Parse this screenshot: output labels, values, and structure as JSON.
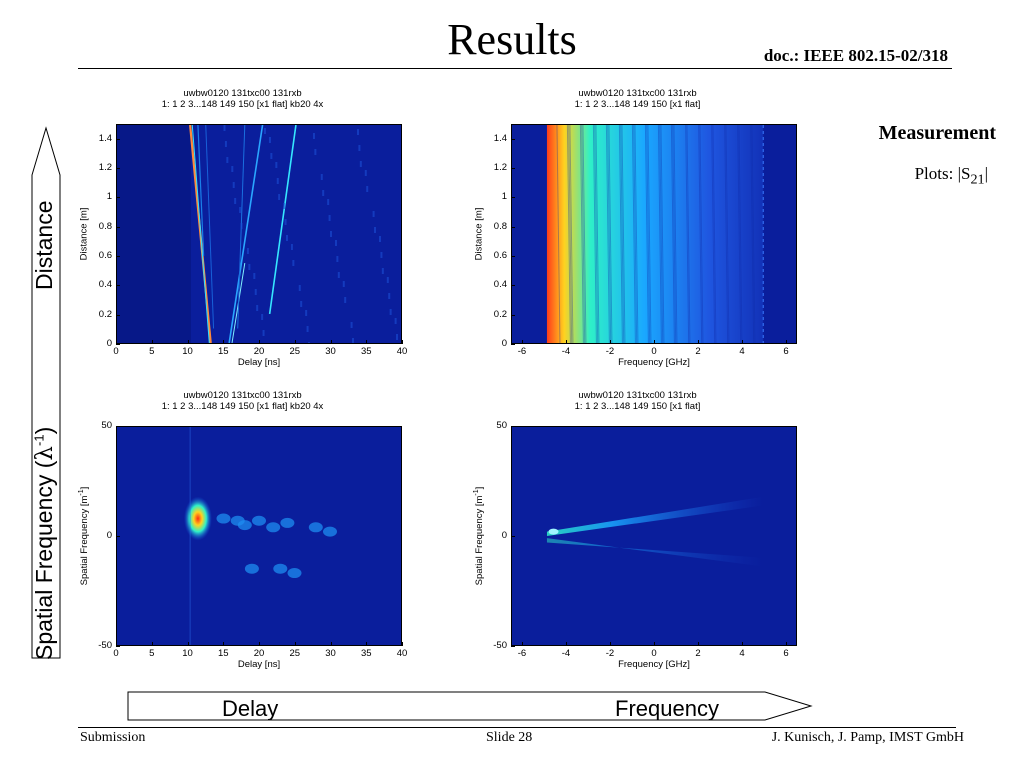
{
  "slide": {
    "title": "Results",
    "doc_ref": "doc.: IEEE 802.15-02/318"
  },
  "sidebar": {
    "heading": "Measurement",
    "plots_prefix": "Plots: |S",
    "plots_subscript": "21",
    "plots_suffix": "|"
  },
  "axes_annotations": {
    "distance": "Distance",
    "spatial_frequency_prefix": "Spatial Frequency  (",
    "spatial_frequency_lambda": "λ",
    "spatial_frequency_exp": "-1",
    "spatial_frequency_suffix": ")",
    "delay": "Delay",
    "frequency": "Frequency"
  },
  "footer": {
    "left": "Submission",
    "center": "Slide 28",
    "right": "J. Kunisch, J. Pamp, IMST GmbH"
  },
  "chart_data": [
    {
      "type": "heatmap",
      "title": "uwbw0120 131txc00 131rxb",
      "subtitle": "1: 1 2 3...148 149 150 [x1 flat] kb20 4x",
      "xlabel": "Delay [ns]",
      "ylabel": "Distance [m]",
      "xlim": [
        0,
        40
      ],
      "ylim": [
        0,
        1.5
      ],
      "xticks": [
        "0",
        "5",
        "10",
        "15",
        "20",
        "25",
        "30",
        "35",
        "40"
      ],
      "yticks": [
        "0",
        "0.2",
        "0.4",
        "0.6",
        "0.8",
        "1",
        "1.2",
        "1.4"
      ]
    },
    {
      "type": "heatmap",
      "title": "uwbw0120 131txc00 131rxb",
      "subtitle": "1: 1 2 3...148 149 150 [x1 flat]",
      "xlabel": "Frequency [GHz]",
      "ylabel": "Distance [m]",
      "xlim": [
        -6.5,
        6.5
      ],
      "ylim": [
        0,
        1.5
      ],
      "xticks": [
        "-6",
        "-4",
        "-2",
        "0",
        "2",
        "4",
        "6"
      ],
      "yticks": [
        "0",
        "0.2",
        "0.4",
        "0.6",
        "0.8",
        "1",
        "1.2",
        "1.4"
      ]
    },
    {
      "type": "heatmap",
      "title": "uwbw0120 131txc00 131rxb",
      "subtitle": "1: 1 2 3...148 149 150 [x1 flat] kb20 4x",
      "xlabel": "Delay [ns]",
      "ylabel": "Spatial Frequency [m",
      "ylabel_exp": "-1",
      "ylabel_end": "]",
      "xlim": [
        0,
        40
      ],
      "ylim": [
        -50,
        50
      ],
      "xticks": [
        "0",
        "5",
        "10",
        "15",
        "20",
        "25",
        "30",
        "35",
        "40"
      ],
      "yticks": [
        "-50",
        "0",
        "50"
      ]
    },
    {
      "type": "heatmap",
      "title": "uwbw0120 131txc00 131rxb",
      "subtitle": "1: 1 2 3...148 149 150 [x1 flat]",
      "xlabel": "Frequency [GHz]",
      "ylabel": "Spatial Frequency [m",
      "ylabel_exp": "-1",
      "ylabel_end": "]",
      "xlim": [
        -6.5,
        6.5
      ],
      "ylim": [
        -50,
        50
      ],
      "xticks": [
        "-6",
        "-4",
        "-2",
        "0",
        "2",
        "4",
        "6"
      ],
      "yticks": [
        "-50",
        "0",
        "50"
      ]
    }
  ]
}
